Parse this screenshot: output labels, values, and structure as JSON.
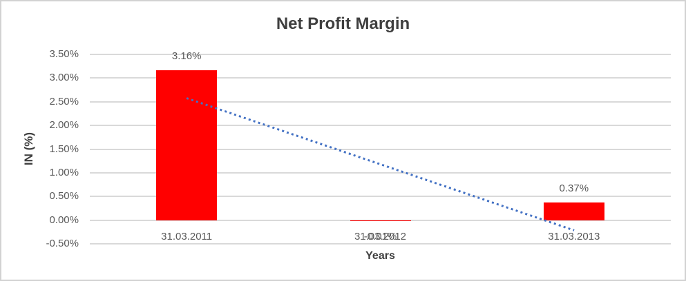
{
  "chart_data": {
    "type": "bar",
    "title": "Net Profit Margin",
    "xlabel": "Years",
    "ylabel": "IN (%)",
    "categories": [
      "31.03.2011",
      "31.03.2012",
      "31.03.2013"
    ],
    "values": [
      3.16,
      -0.01,
      0.37
    ],
    "data_labels": [
      "3.16%",
      "-0.01%",
      "0.37%"
    ],
    "ylim": [
      -0.5,
      3.5
    ],
    "yticks": [
      {
        "value": 3.5,
        "label": "3.50%"
      },
      {
        "value": 3.0,
        "label": "3.00%"
      },
      {
        "value": 2.5,
        "label": "2.50%"
      },
      {
        "value": 2.0,
        "label": "2.00%"
      },
      {
        "value": 1.5,
        "label": "1.50%"
      },
      {
        "value": 1.0,
        "label": "1.00%"
      },
      {
        "value": 0.5,
        "label": "0.50%"
      },
      {
        "value": 0.0,
        "label": "0.00%"
      },
      {
        "value": -0.5,
        "label": "-0.50%"
      }
    ],
    "grid": true,
    "legend_position": "none",
    "trendline": {
      "type": "linear",
      "style": "dotted",
      "start_value": 2.57,
      "end_value": -0.22
    },
    "colors": {
      "bar": "#ff0000",
      "trendline": "#4472c4",
      "gridline": "#d9d9d9",
      "axis_text": "#595959",
      "title_text": "#3f3f3f",
      "frame_border": "#d2d2d2"
    }
  }
}
